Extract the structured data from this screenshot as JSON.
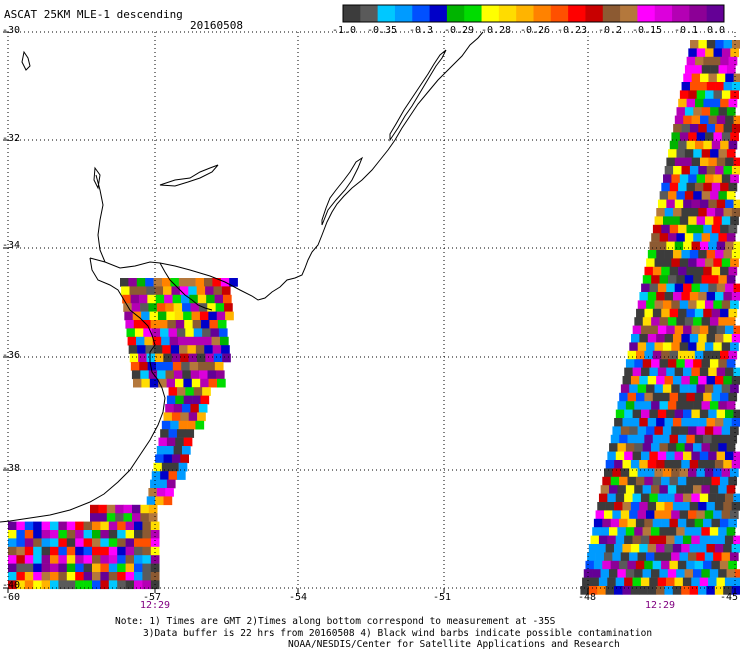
{
  "header": {
    "title": "ASCAT 25KM MLE-1 descending",
    "date": "20160508"
  },
  "colorbar": {
    "colors": [
      "#3c3c3c",
      "#5a5a5a",
      "#00c8ff",
      "#009bff",
      "#0050ff",
      "#0000c8",
      "#00b400",
      "#00dc00",
      "#ffff00",
      "#ffdc00",
      "#ffb400",
      "#ff8200",
      "#ff5000",
      "#ff0000",
      "#c80000",
      "#8c5a32",
      "#b4783c",
      "#ff00ff",
      "#dc00dc",
      "#b400b4",
      "#8c0096",
      "#640096"
    ],
    "labels": [
      "-1.0",
      "-0.35",
      "-0.3",
      "-0.29",
      "-0.28",
      "-0.26",
      "-0.23",
      "-0.2",
      "-0.15",
      "-0.1",
      "0.0"
    ]
  },
  "axes": {
    "lat_labels": [
      "-30",
      "-32",
      "-34",
      "-36",
      "-38",
      "-40"
    ],
    "lon_labels": [
      "-60",
      "-57",
      "-54",
      "-51",
      "-48",
      "-45"
    ],
    "lat_range": [
      -40,
      -30
    ],
    "lon_range": [
      -60,
      -45
    ]
  },
  "swath_times": [
    "12:29",
    "12:29"
  ],
  "footer": {
    "line1": "Note: 1) Times are GMT 2)Times along bottom correspond to measurement at -35S",
    "line2": "3)Data buffer is 22 hrs from 20160508 4) Black wind barbs indicate possible contamination",
    "line3": "NOAA/NESDIS/Center for Satellite Applications and Research"
  },
  "colors": {
    "grid": "#000000",
    "coast": "#000000",
    "time_label": "#800080"
  }
}
